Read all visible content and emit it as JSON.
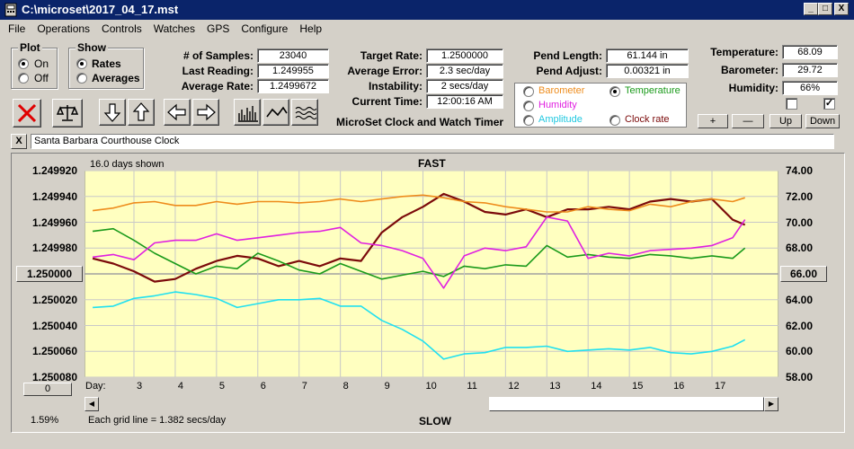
{
  "window": {
    "title": "C:\\microset\\2017_04_17.mst",
    "min": "_",
    "max": "□",
    "close": "X"
  },
  "menu": [
    "File",
    "Operations",
    "Controls",
    "Watches",
    "GPS",
    "Configure",
    "Help"
  ],
  "plot": {
    "title": "Plot",
    "on": "On",
    "off": "Off",
    "selected": "On"
  },
  "show": {
    "title": "Show",
    "rates": "Rates",
    "averages": "Averages",
    "selected": "Rates"
  },
  "stats": {
    "samples_label": "# of Samples:",
    "samples": "23040",
    "last_label": "Last Reading:",
    "last": "1.249955",
    "avg_label": "Average Rate:",
    "avg": "1.2499672",
    "target_label": "Target Rate:",
    "target": "1.2500000",
    "error_label": "Average Error:",
    "error": "2.3 sec/day",
    "instab_label": "Instability:",
    "instab": "2 secs/day",
    "time_label": "Current Time:",
    "time": "12:00:16 AM",
    "pendlen_label": "Pend Length:",
    "pendlen": "61.144 in",
    "pendadj_label": "Pend Adjust:",
    "pendadj": "0.00321 in",
    "temp_label": "Temperature:",
    "temp": "68.09",
    "baro_label": "Barometer:",
    "baro": "29.72",
    "hum_label": "Humidity:",
    "hum": "66%"
  },
  "app_title": "MicroSet Clock and Watch Timer",
  "sensors": {
    "barometer": "Barometer",
    "temperature": "Temperature",
    "humidity": "Humidity",
    "amplitude": "Amplitude",
    "clockrate": "Clock rate",
    "selected": "Temperature"
  },
  "sensor_buttons": {
    "plus": "+",
    "minus": "—",
    "up": "Up",
    "down": "Down"
  },
  "clock_name": "Santa Barbara Courthouse Clock",
  "clear_button": "X",
  "chart_data": {
    "type": "line",
    "top_label": "FAST",
    "bottom_label": "SLOW",
    "days_shown": "16.0 days shown",
    "grid_note": "Each grid line = 1.382 secs/day",
    "percent": "1.59%",
    "left_axis_ticks": [
      "1.249920",
      "1.249940",
      "1.249960",
      "1.249980",
      "1.250000",
      "1.250020",
      "1.250040",
      "1.250060",
      "1.250080"
    ],
    "left_axis_center": "1.250000",
    "right_axis_ticks": [
      "74.00",
      "72.00",
      "70.00",
      "68.00",
      "66.00",
      "64.00",
      "62.00",
      "60.00",
      "58.00"
    ],
    "right_axis_center": "66.00",
    "left_button": "0",
    "x_label": "Day:",
    "days": [
      3,
      4,
      5,
      6,
      7,
      8,
      9,
      10,
      11,
      12,
      13,
      14,
      15,
      16,
      17
    ],
    "series": [
      {
        "name": "Clock rate",
        "color": "#7b0a0a",
        "x": [
          2,
          2.5,
          3,
          3.5,
          4,
          4.5,
          5,
          5.5,
          6,
          6.5,
          7,
          7.5,
          8,
          8.5,
          9,
          9.5,
          10,
          10.5,
          11,
          11.5,
          12,
          12.5,
          13,
          13.5,
          14,
          14.5,
          15,
          15.5,
          16,
          16.5,
          17,
          17.5,
          17.8
        ],
        "y": [
          1.249988,
          1.249992,
          1.249998,
          1.250006,
          1.250004,
          1.249996,
          1.24999,
          1.249986,
          1.249988,
          1.249994,
          1.24999,
          1.249994,
          1.249988,
          1.24999,
          1.249968,
          1.249956,
          1.249948,
          1.249938,
          1.249944,
          1.249952,
          1.249954,
          1.24995,
          1.249956,
          1.24995,
          1.24995,
          1.249948,
          1.24995,
          1.249944,
          1.249942,
          1.249944,
          1.249942,
          1.249958,
          1.249962
        ]
      },
      {
        "name": "Temperature",
        "color": "#1a9a1a",
        "x": [
          2,
          2.5,
          3,
          3.5,
          4,
          4.5,
          5,
          5.5,
          6,
          6.5,
          7,
          7.5,
          8,
          8.5,
          9,
          9.5,
          10,
          10.5,
          11,
          11.5,
          12,
          12.5,
          13,
          13.5,
          14,
          14.5,
          15,
          15.5,
          16,
          16.5,
          17,
          17.5,
          17.8
        ],
        "y": [
          69.3,
          69.5,
          68.6,
          67.6,
          66.8,
          66.0,
          66.6,
          66.4,
          67.6,
          67.0,
          66.3,
          66.0,
          66.8,
          66.2,
          65.6,
          65.9,
          66.2,
          65.8,
          66.6,
          66.4,
          66.7,
          66.6,
          68.2,
          67.3,
          67.5,
          67.3,
          67.2,
          67.5,
          67.4,
          67.2,
          67.4,
          67.2,
          68.0
        ]
      },
      {
        "name": "Barometer",
        "color": "#ee8c1c",
        "x": [
          2,
          2.5,
          3,
          3.5,
          4,
          4.5,
          5,
          5.5,
          6,
          6.5,
          7,
          7.5,
          8,
          8.5,
          9,
          9.5,
          10,
          10.5,
          11,
          11.5,
          12,
          12.5,
          13,
          13.5,
          14,
          14.5,
          15,
          15.5,
          16,
          16.5,
          17,
          17.5,
          17.8
        ],
        "y": [
          70.9,
          71.1,
          71.5,
          71.6,
          71.3,
          71.3,
          71.6,
          71.4,
          71.6,
          71.6,
          71.5,
          71.6,
          71.8,
          71.6,
          71.8,
          72.0,
          72.1,
          71.9,
          71.6,
          71.5,
          71.2,
          71.0,
          70.8,
          70.8,
          71.2,
          71.0,
          70.9,
          71.4,
          71.2,
          71.6,
          71.8,
          71.6,
          71.9
        ]
      },
      {
        "name": "Humidity",
        "color": "#e020e0",
        "x": [
          2,
          2.5,
          3,
          3.5,
          4,
          4.5,
          5,
          5.5,
          6,
          6.5,
          7,
          7.5,
          8,
          8.5,
          9,
          9.5,
          10,
          10.5,
          11,
          11.5,
          12,
          12.5,
          13,
          13.5,
          14,
          14.5,
          15,
          15.5,
          16,
          16.5,
          17,
          17.5,
          17.8
        ],
        "y": [
          67.3,
          67.5,
          67.1,
          68.4,
          68.6,
          68.6,
          69.1,
          68.6,
          68.8,
          69.0,
          69.2,
          69.3,
          69.6,
          68.4,
          68.2,
          67.8,
          67.2,
          64.9,
          67.4,
          68.0,
          67.8,
          68.1,
          70.4,
          70.1,
          67.2,
          67.6,
          67.4,
          67.8,
          67.9,
          68.0,
          68.2,
          68.8,
          70.2
        ]
      },
      {
        "name": "Amplitude",
        "color": "#20e0f0",
        "x": [
          2,
          2.5,
          3,
          3.5,
          4,
          4.5,
          5,
          5.5,
          6,
          6.5,
          7,
          7.5,
          8,
          8.5,
          9,
          9.5,
          10,
          10.5,
          11,
          11.5,
          12,
          12.5,
          13,
          13.5,
          14,
          14.5,
          15,
          15.5,
          16,
          16.5,
          17,
          17.5,
          17.8
        ],
        "y": [
          63.4,
          63.5,
          64.1,
          64.3,
          64.6,
          64.4,
          64.1,
          63.4,
          63.7,
          64.0,
          64.0,
          64.1,
          63.5,
          63.5,
          62.4,
          61.7,
          60.8,
          59.4,
          59.8,
          59.9,
          60.3,
          60.3,
          60.4,
          60.0,
          60.1,
          60.2,
          60.1,
          60.3,
          59.9,
          59.8,
          60.0,
          60.4,
          60.9
        ]
      }
    ]
  }
}
